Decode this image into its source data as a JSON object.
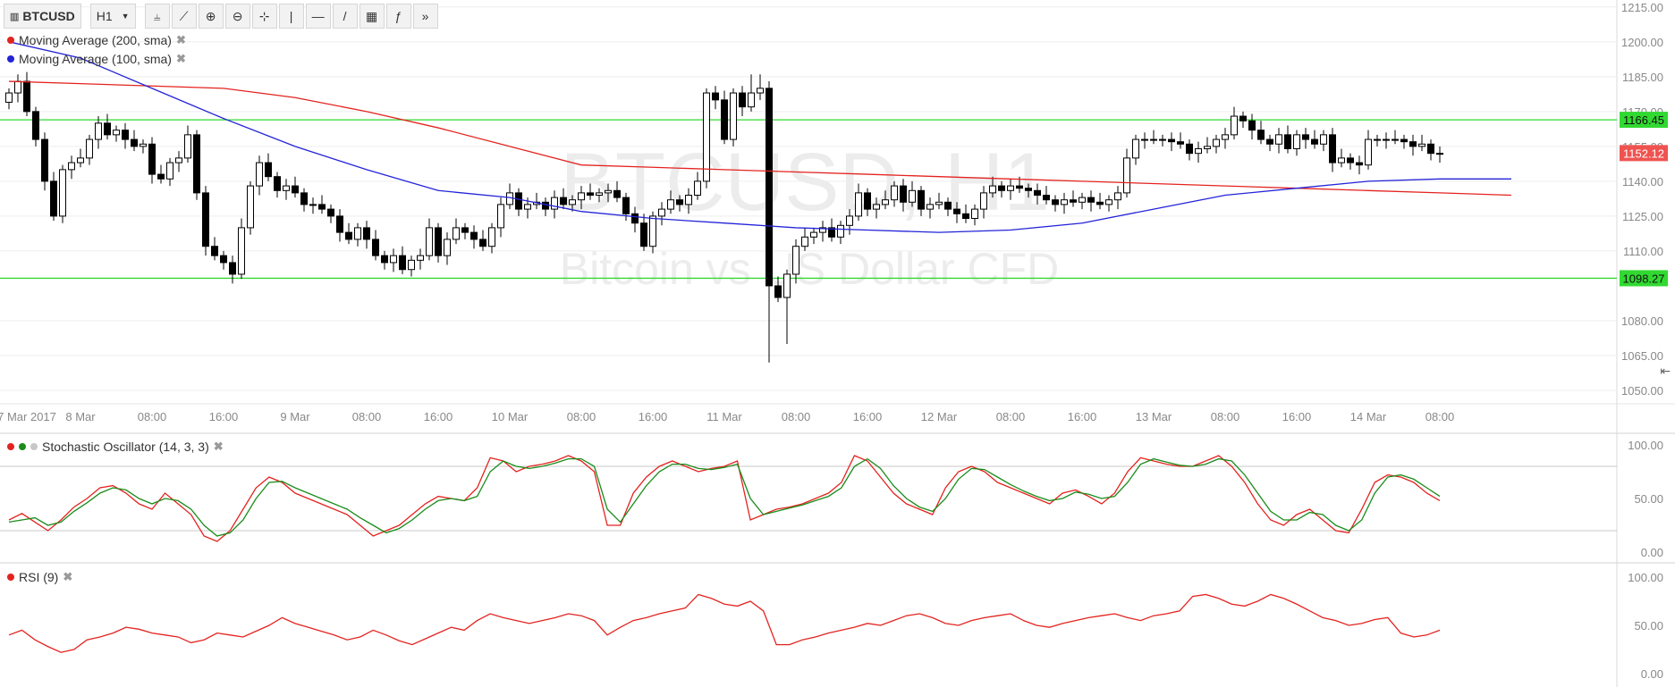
{
  "toolbar": {
    "symbol": "BTCUSD",
    "interval": "H1",
    "tools": [
      {
        "name": "indicators-icon",
        "glyph": "⫨"
      },
      {
        "name": "compare-icon",
        "glyph": "⟋"
      },
      {
        "name": "zoom-in-icon",
        "glyph": "⊕"
      },
      {
        "name": "zoom-out-icon",
        "glyph": "⊖"
      },
      {
        "name": "crosshair-icon",
        "glyph": "⊹"
      },
      {
        "name": "vertical-line-icon",
        "glyph": "|"
      },
      {
        "name": "horizontal-line-icon",
        "glyph": "—"
      },
      {
        "name": "trend-line-icon",
        "glyph": "/"
      },
      {
        "name": "fib-icon",
        "glyph": "▦"
      },
      {
        "name": "function-icon",
        "glyph": "ƒ"
      },
      {
        "name": "forward-icon",
        "glyph": "»"
      }
    ]
  },
  "colors": {
    "ma200": "#e3231f",
    "ma100": "#2323d8",
    "stoch_k": "#e3231f",
    "stoch_d": "#1a8c1a",
    "rsi": "#e3231f",
    "support": "#31d931",
    "resistance": "#31d931",
    "last_price": "#ef5350",
    "candle_up": "#ffffff",
    "candle_down": "#000000",
    "grid": "#eeeeee"
  },
  "watermark": {
    "title": "BTCUSD, H1",
    "subtitle": "Bitcoin vs US Dollar CFD"
  },
  "legend": {
    "ma200": "Moving Average (200, sma)",
    "ma100": "Moving Average (100, sma)",
    "stoch": "Stochastic Oscillator (14, 3, 3)",
    "rsi": "RSI (9)"
  },
  "chart_data": [
    {
      "type": "candlestick",
      "symbol": "BTCUSD",
      "interval": "H1",
      "y_axis": [
        "1050.00",
        "1065.00",
        "1080.00",
        "1098.27",
        "1110.00",
        "1125.00",
        "1140.00",
        "1155.00",
        "1170.00",
        "1185.00",
        "1200.00",
        "1215.00"
      ],
      "y_ticks": [
        1050,
        1065,
        1080,
        1110,
        1125,
        1140,
        1155,
        1170,
        1185,
        1200,
        1215
      ],
      "ylim": [
        1045,
        1218
      ],
      "x_ticks": [
        {
          "label": "7 Mar 2017",
          "i": 0
        },
        {
          "label": "8 Mar",
          "i": 8
        },
        {
          "label": "08:00",
          "i": 16
        },
        {
          "label": "16:00",
          "i": 24
        },
        {
          "label": "9 Mar",
          "i": 32
        },
        {
          "label": "08:00",
          "i": 40
        },
        {
          "label": "16:00",
          "i": 48
        },
        {
          "label": "10 Mar",
          "i": 56
        },
        {
          "label": "08:00",
          "i": 64
        },
        {
          "label": "16:00",
          "i": 72
        },
        {
          "label": "11 Mar",
          "i": 80
        },
        {
          "label": "08:00",
          "i": 88
        },
        {
          "label": "16:00",
          "i": 96
        },
        {
          "label": "12 Mar",
          "i": 104
        },
        {
          "label": "08:00",
          "i": 112
        },
        {
          "label": "16:00",
          "i": 120
        },
        {
          "label": "13 Mar",
          "i": 128
        },
        {
          "label": "08:00",
          "i": 136
        },
        {
          "label": "16:00",
          "i": 144
        },
        {
          "label": "14 Mar",
          "i": 152
        },
        {
          "label": "08:00",
          "i": 160
        }
      ],
      "horizontal_lines": [
        {
          "value": 1166.45,
          "label": "1166.45"
        },
        {
          "value": 1098.27,
          "label": "1098.27"
        }
      ],
      "last_price": {
        "value": 1152.12,
        "label": "1152.12"
      },
      "close": [
        1178,
        1183,
        1170,
        1158,
        1140,
        1125,
        1145,
        1148,
        1150,
        1158,
        1165,
        1160,
        1162,
        1158,
        1155,
        1156,
        1143,
        1141,
        1148,
        1150,
        1160,
        1135,
        1112,
        1108,
        1105,
        1100,
        1120,
        1138,
        1148,
        1142,
        1136,
        1138,
        1135,
        1130,
        1130,
        1128,
        1125,
        1118,
        1115,
        1120,
        1115,
        1108,
        1105,
        1108,
        1102,
        1106,
        1108,
        1120,
        1108,
        1115,
        1120,
        1118,
        1115,
        1112,
        1120,
        1130,
        1135,
        1128,
        1130,
        1131,
        1128,
        1133,
        1130,
        1132,
        1135,
        1134,
        1135,
        1136,
        1133,
        1126,
        1122,
        1112,
        1125,
        1128,
        1132,
        1130,
        1134,
        1140,
        1178,
        1175,
        1158,
        1178,
        1172,
        1178,
        1180,
        1095,
        1090,
        1100,
        1112,
        1116,
        1118,
        1120,
        1116,
        1121,
        1125,
        1135,
        1128,
        1130,
        1132,
        1138,
        1131,
        1136,
        1128,
        1130,
        1131,
        1128,
        1126,
        1124,
        1128,
        1135,
        1138,
        1136,
        1138,
        1137,
        1136,
        1134,
        1132,
        1130,
        1132,
        1131,
        1133,
        1131,
        1130,
        1132,
        1135,
        1150,
        1158,
        1158,
        1158,
        1158,
        1157,
        1156,
        1152,
        1154,
        1155,
        1158,
        1160,
        1168,
        1166,
        1162,
        1158,
        1156,
        1160,
        1154,
        1160,
        1158,
        1156,
        1160,
        1148,
        1150,
        1148,
        1147,
        1158,
        1158,
        1158,
        1158,
        1157,
        1155,
        1156,
        1152,
        1152
      ],
      "ma200": [
        1183,
        1182,
        1181,
        1180,
        1176,
        1170,
        1163,
        1155,
        1147,
        1146,
        1145,
        1144,
        1143,
        1142,
        1141,
        1140,
        1139,
        1138,
        1137,
        1136,
        1135,
        1134
      ],
      "ma100": [
        1200,
        1193,
        1180,
        1167,
        1155,
        1145,
        1136,
        1133,
        1127,
        1124,
        1122,
        1120,
        1119,
        1118,
        1119,
        1122,
        1128,
        1134,
        1137,
        1140,
        1141,
        1141
      ]
    },
    {
      "type": "line",
      "title": "Stochastic Oscillator (14, 3, 3)",
      "y_axis": [
        "0.00",
        "50.00",
        "100.00"
      ],
      "ylim": [
        0,
        100
      ],
      "levels": [
        20,
        80
      ],
      "series": [
        {
          "name": "%K",
          "values": [
            30,
            36,
            28,
            20,
            30,
            42,
            50,
            60,
            62,
            55,
            45,
            40,
            55,
            45,
            35,
            15,
            10,
            20,
            40,
            60,
            70,
            65,
            55,
            50,
            45,
            40,
            35,
            25,
            15,
            20,
            25,
            35,
            45,
            52,
            50,
            48,
            60,
            88,
            85,
            75,
            80,
            82,
            85,
            90,
            85,
            75,
            25,
            25,
            55,
            70,
            80,
            85,
            80,
            75,
            78,
            80,
            85,
            30,
            35,
            40,
            42,
            45,
            50,
            55,
            65,
            90,
            85,
            70,
            55,
            45,
            40,
            35,
            60,
            75,
            80,
            75,
            65,
            60,
            55,
            50,
            45,
            55,
            58,
            52,
            45,
            55,
            75,
            88,
            85,
            82,
            80,
            80,
            85,
            90,
            80,
            65,
            45,
            30,
            25,
            35,
            40,
            30,
            20,
            18,
            40,
            65,
            72,
            70,
            65,
            55,
            48
          ]
        },
        {
          "name": "%D",
          "values": [
            28,
            30,
            32,
            25,
            28,
            38,
            46,
            55,
            60,
            58,
            50,
            45,
            50,
            48,
            40,
            25,
            15,
            18,
            30,
            50,
            65,
            66,
            60,
            55,
            50,
            45,
            40,
            32,
            25,
            18,
            22,
            30,
            40,
            48,
            50,
            48,
            52,
            75,
            85,
            80,
            78,
            80,
            83,
            87,
            87,
            80,
            40,
            28,
            45,
            62,
            75,
            82,
            82,
            78,
            77,
            79,
            82,
            50,
            35,
            38,
            41,
            44,
            48,
            52,
            60,
            80,
            87,
            78,
            62,
            50,
            42,
            38,
            50,
            68,
            78,
            77,
            70,
            63,
            57,
            52,
            48,
            50,
            56,
            54,
            50,
            52,
            65,
            82,
            87,
            84,
            81,
            80,
            82,
            87,
            85,
            72,
            55,
            38,
            30,
            30,
            37,
            35,
            25,
            20,
            30,
            55,
            70,
            72,
            68,
            60,
            52
          ]
        }
      ]
    },
    {
      "type": "line",
      "title": "RSI (9)",
      "y_axis": [
        "0.00",
        "50.00",
        "100.00"
      ],
      "ylim": [
        0,
        100
      ],
      "series": [
        {
          "name": "RSI (9)",
          "values": [
            40,
            45,
            35,
            28,
            22,
            25,
            35,
            38,
            42,
            48,
            46,
            42,
            40,
            38,
            32,
            35,
            42,
            40,
            38,
            44,
            50,
            58,
            52,
            48,
            44,
            40,
            35,
            38,
            45,
            40,
            34,
            30,
            36,
            42,
            48,
            45,
            55,
            62,
            58,
            55,
            52,
            55,
            58,
            62,
            60,
            55,
            40,
            48,
            55,
            58,
            62,
            65,
            68,
            82,
            78,
            72,
            70,
            75,
            65,
            30,
            30,
            35,
            38,
            42,
            45,
            48,
            52,
            50,
            55,
            60,
            62,
            58,
            52,
            50,
            55,
            58,
            60,
            62,
            55,
            50,
            48,
            52,
            55,
            58,
            60,
            62,
            58,
            55,
            60,
            62,
            65,
            80,
            82,
            78,
            72,
            70,
            75,
            82,
            78,
            72,
            65,
            58,
            55,
            50,
            52,
            56,
            58,
            42,
            38,
            40,
            45
          ]
        }
      ]
    }
  ]
}
